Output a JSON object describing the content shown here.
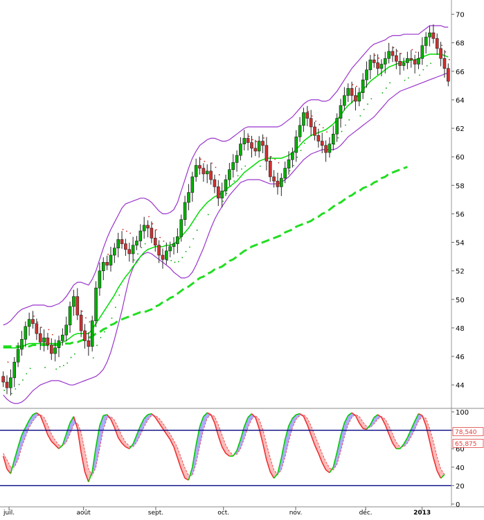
{
  "chart_data": [
    {
      "type": "candlestick",
      "title": "",
      "ylim": [
        42.5,
        71
      ],
      "y_ticks": [
        "44",
        "46",
        "48",
        "50",
        "52",
        "54",
        "56",
        "58",
        "60",
        "62",
        "64",
        "66",
        "68",
        "70"
      ],
      "x_ticks": [
        {
          "label": "juil.",
          "pos": 0.02
        },
        {
          "label": "août",
          "pos": 0.185
        },
        {
          "label": "sept.",
          "pos": 0.345
        },
        {
          "label": "oct.",
          "pos": 0.495
        },
        {
          "label": "nov.",
          "pos": 0.655
        },
        {
          "label": "déc.",
          "pos": 0.81
        },
        {
          "label": "2013",
          "pos": 0.935,
          "bold": true
        }
      ],
      "grid": false,
      "colors": {
        "up": "#00b000",
        "down": "#d03030",
        "bollinger": "#9933cc",
        "ma_short": "#00dd00",
        "ma_long": "#22dd22",
        "ma_fast": "#ff4444"
      },
      "close": [
        44.2,
        43.8,
        44.5,
        45.6,
        46.5,
        47.2,
        48.1,
        48.6,
        48.3,
        47.6,
        47.0,
        47.3,
        46.8,
        46.2,
        46.6,
        47.1,
        47.5,
        48.2,
        49.5,
        50.2,
        48.9,
        47.8,
        47.1,
        46.7,
        48.5,
        50.8,
        52.0,
        52.6,
        52.4,
        53.1,
        53.6,
        54.2,
        53.9,
        53.5,
        53.2,
        53.8,
        54.1,
        54.8,
        55.2,
        55.0,
        54.3,
        53.8,
        53.1,
        52.8,
        53.4,
        53.7,
        53.9,
        54.4,
        55.6,
        56.8,
        57.5,
        58.6,
        59.4,
        59.2,
        58.8,
        59.0,
        58.4,
        57.9,
        57.1,
        57.6,
        58.4,
        59.1,
        59.6,
        60.1,
        60.9,
        61.3,
        61.0,
        60.6,
        60.4,
        61.1,
        60.8,
        59.7,
        58.6,
        58.3,
        57.9,
        58.5,
        59.2,
        59.8,
        60.3,
        61.4,
        62.2,
        63.1,
        62.7,
        62.1,
        61.5,
        61.1,
        60.8,
        60.3,
        60.9,
        61.6,
        62.7,
        63.6,
        64.3,
        64.8,
        64.3,
        63.9,
        64.5,
        65.4,
        66.1,
        66.8,
        66.6,
        66.2,
        66.5,
        66.9,
        67.4,
        67.1,
        66.7,
        66.4,
        66.6,
        66.9,
        66.8,
        66.5,
        66.9,
        67.8,
        68.4,
        68.7,
        68.3,
        67.6,
        66.9,
        66.2,
        65.3
      ],
      "ma20": [
        46.6,
        46.6,
        46.6,
        46.6,
        46.6,
        46.7,
        46.8,
        46.9,
        46.9,
        46.9,
        46.9,
        46.9,
        46.9,
        46.9,
        46.9,
        46.9,
        47.0,
        47.1,
        47.3,
        47.5,
        47.6,
        47.6,
        47.6,
        47.6,
        47.9,
        48.3,
        48.7,
        49.1,
        49.5,
        49.9,
        50.3,
        50.8,
        51.2,
        51.6,
        51.9,
        52.3,
        52.6,
        53.0,
        53.3,
        53.5,
        53.6,
        53.7,
        53.7,
        53.7,
        53.8,
        53.8,
        53.9,
        54.1,
        54.4,
        54.7,
        55.0,
        55.4,
        55.8,
        56.2,
        56.5,
        56.8,
        57.0,
        57.2,
        57.3,
        57.5,
        57.7,
        57.9,
        58.1,
        58.3,
        58.6,
        58.9,
        59.1,
        59.3,
        59.5,
        59.7,
        59.8,
        59.9,
        59.9,
        59.9,
        59.9,
        59.9,
        60.0,
        60.1,
        60.3,
        60.5,
        60.8,
        61.1,
        61.3,
        61.5,
        61.6,
        61.7,
        61.8,
        61.9,
        62.1,
        62.3,
        62.6,
        62.9,
        63.3,
        63.6,
        63.8,
        64.1,
        64.4,
        64.7,
        65.0,
        65.3,
        65.5,
        65.7,
        65.9,
        66.1,
        66.3,
        66.4,
        66.5,
        66.6,
        66.7,
        66.7,
        66.8,
        66.8,
        66.9,
        67.0,
        67.1,
        67.2,
        67.2,
        67.2,
        67.2,
        67.1,
        67.0
      ],
      "boll_upper": [
        48.2,
        48.3,
        48.5,
        48.8,
        49.1,
        49.3,
        49.4,
        49.5,
        49.6,
        49.6,
        49.6,
        49.6,
        49.5,
        49.5,
        49.6,
        49.7,
        49.9,
        50.2,
        50.6,
        51.0,
        51.2,
        51.2,
        51.1,
        51.0,
        51.4,
        52.0,
        52.8,
        53.6,
        54.3,
        54.9,
        55.4,
        55.9,
        56.4,
        56.7,
        56.8,
        56.9,
        57.0,
        57.1,
        57.1,
        57.0,
        56.8,
        56.5,
        56.2,
        56.0,
        56.0,
        56.1,
        56.3,
        56.8,
        57.6,
        58.4,
        59.2,
        59.9,
        60.4,
        60.8,
        61.0,
        61.2,
        61.3,
        61.3,
        61.2,
        61.1,
        61.1,
        61.2,
        61.4,
        61.6,
        61.8,
        62.0,
        62.1,
        62.1,
        62.1,
        62.1,
        62.1,
        62.1,
        62.1,
        62.1,
        62.1,
        62.2,
        62.4,
        62.6,
        62.8,
        63.1,
        63.4,
        63.7,
        63.9,
        64.0,
        64.0,
        64.0,
        63.9,
        63.9,
        64.0,
        64.3,
        64.6,
        65.0,
        65.4,
        65.8,
        66.2,
        66.5,
        66.8,
        67.1,
        67.4,
        67.7,
        67.9,
        68.0,
        68.1,
        68.2,
        68.4,
        68.5,
        68.5,
        68.5,
        68.6,
        68.6,
        68.6,
        68.6,
        68.6,
        68.8,
        69.0,
        69.2,
        69.2,
        69.2,
        69.2,
        69.1,
        69.1
      ],
      "boll_lower": [
        43.3,
        43.0,
        42.8,
        42.7,
        42.7,
        42.8,
        43.0,
        43.3,
        43.6,
        43.8,
        44.0,
        44.1,
        44.2,
        44.3,
        44.3,
        44.3,
        44.2,
        44.1,
        44.0,
        44.0,
        44.1,
        44.2,
        44.3,
        44.4,
        44.5,
        44.6,
        44.8,
        45.1,
        45.6,
        46.3,
        47.2,
        48.2,
        49.2,
        50.4,
        51.5,
        52.2,
        52.7,
        53.0,
        53.2,
        53.3,
        53.2,
        53.0,
        52.8,
        52.6,
        52.4,
        52.2,
        51.9,
        51.7,
        51.5,
        51.5,
        51.6,
        51.9,
        52.4,
        53.0,
        53.6,
        54.3,
        55.0,
        55.6,
        56.1,
        56.5,
        56.9,
        57.3,
        57.6,
        57.9,
        58.2,
        58.3,
        58.4,
        58.4,
        58.4,
        58.4,
        58.3,
        58.2,
        58.1,
        58.1,
        58.1,
        58.2,
        58.4,
        58.6,
        58.9,
        59.2,
        59.5,
        59.8,
        60.0,
        60.2,
        60.3,
        60.4,
        60.5,
        60.5,
        60.5,
        60.5,
        60.6,
        60.8,
        61.1,
        61.4,
        61.6,
        61.8,
        62.0,
        62.2,
        62.4,
        62.6,
        62.8,
        63.1,
        63.4,
        63.7,
        64.0,
        64.2,
        64.4,
        64.6,
        64.7,
        64.8,
        64.9,
        65.0,
        65.1,
        65.2,
        65.3,
        65.4,
        65.5,
        65.6,
        65.7,
        65.8,
        65.9
      ],
      "ma_long": [
        46.7,
        46.7,
        46.7,
        46.7,
        46.7,
        46.7,
        46.7,
        46.7,
        46.8,
        46.8,
        46.8,
        46.8,
        46.8,
        46.8,
        46.8,
        46.8,
        46.9,
        46.9,
        46.9,
        47.0,
        47.0,
        47.1,
        47.2,
        47.3,
        47.4,
        47.6,
        47.7,
        47.9,
        48.0,
        48.2,
        48.3,
        48.5,
        48.6,
        48.7,
        48.8,
        48.9,
        49.0,
        49.1,
        49.1,
        49.2,
        49.3,
        49.5,
        49.6,
        49.8,
        49.9,
        50.1,
        50.2,
        50.4,
        50.6,
        50.8,
        50.9,
        51.1,
        51.3,
        51.5,
        51.6,
        51.8,
        51.9,
        52.1,
        52.2,
        52.3,
        52.5,
        52.7,
        52.8,
        53.0,
        53.2,
        53.4,
        53.5,
        53.7,
        53.8,
        53.9,
        54.0,
        54.1,
        54.2,
        54.3,
        54.4,
        54.5,
        54.7,
        54.8,
        54.9,
        55.1,
        55.2,
        55.3,
        55.4,
        55.5,
        55.7,
        55.8,
        56.0,
        56.1,
        56.3,
        56.5,
        56.7,
        56.8,
        57.0,
        57.2,
        57.3,
        57.5,
        57.6,
        57.8,
        57.9,
        58.0,
        58.2,
        58.3,
        58.5,
        58.6,
        58.8,
        58.9,
        59.0,
        59.1,
        59.2,
        59.3
      ]
    },
    {
      "type": "line",
      "title": "",
      "ylim": [
        0,
        100
      ],
      "y_ticks": [
        "0",
        "20",
        "40",
        "60",
        "80",
        "100"
      ],
      "levels": [
        {
          "value": 20
        },
        {
          "value": 80
        }
      ],
      "level_labels": [
        "78,540",
        "65,875"
      ],
      "level_label_values": [
        78.54,
        65.875
      ],
      "colors": {
        "k_up": "#00cc00",
        "k_down": "#ee3030",
        "d_line": "#ee5050",
        "fill_up": "#aaaaff",
        "fill_down": "#ffbbbb",
        "level": "#000080"
      },
      "k": [
        52,
        38,
        33,
        48,
        62,
        75,
        83,
        91,
        97,
        99,
        96,
        86,
        75,
        68,
        64,
        60,
        64,
        76,
        88,
        95,
        82,
        56,
        35,
        24,
        35,
        62,
        85,
        96,
        97,
        92,
        83,
        72,
        66,
        62,
        60,
        65,
        75,
        85,
        93,
        97,
        98,
        94,
        88,
        82,
        76,
        70,
        62,
        50,
        38,
        28,
        26,
        40,
        64,
        84,
        95,
        99,
        97,
        88,
        74,
        62,
        55,
        52,
        52,
        58,
        70,
        84,
        94,
        98,
        94,
        82,
        66,
        48,
        35,
        28,
        33,
        50,
        70,
        85,
        93,
        97,
        98,
        95,
        86,
        75,
        64,
        55,
        45,
        37,
        34,
        40,
        56,
        74,
        88,
        96,
        99,
        96,
        88,
        82,
        81,
        86,
        94,
        97,
        94,
        86,
        76,
        66,
        60,
        60,
        65,
        72,
        81,
        90,
        98,
        96,
        85,
        68,
        50,
        36,
        28,
        32
      ],
      "d": [
        55,
        48,
        40,
        40,
        48,
        62,
        73,
        83,
        90,
        95,
        97,
        94,
        86,
        76,
        69,
        64,
        63,
        67,
        76,
        86,
        88,
        78,
        58,
        38,
        31,
        40,
        60,
        81,
        93,
        95,
        91,
        83,
        74,
        67,
        63,
        62,
        67,
        75,
        84,
        91,
        96,
        96,
        93,
        88,
        82,
        76,
        69,
        61,
        50,
        39,
        31,
        31,
        44,
        63,
        81,
        93,
        97,
        95,
        86,
        75,
        64,
        57,
        53,
        54,
        60,
        71,
        83,
        92,
        96,
        92,
        81,
        65,
        50,
        37,
        32,
        37,
        51,
        68,
        83,
        92,
        96,
        97,
        93,
        85,
        75,
        65,
        55,
        46,
        39,
        37,
        43,
        57,
        73,
        86,
        94,
        97,
        95,
        89,
        84,
        83,
        87,
        92,
        95,
        92,
        85,
        76,
        67,
        62,
        62,
        66,
        73,
        81,
        90,
        95,
        93,
        82,
        68,
        51,
        38,
        32
      ]
    }
  ]
}
